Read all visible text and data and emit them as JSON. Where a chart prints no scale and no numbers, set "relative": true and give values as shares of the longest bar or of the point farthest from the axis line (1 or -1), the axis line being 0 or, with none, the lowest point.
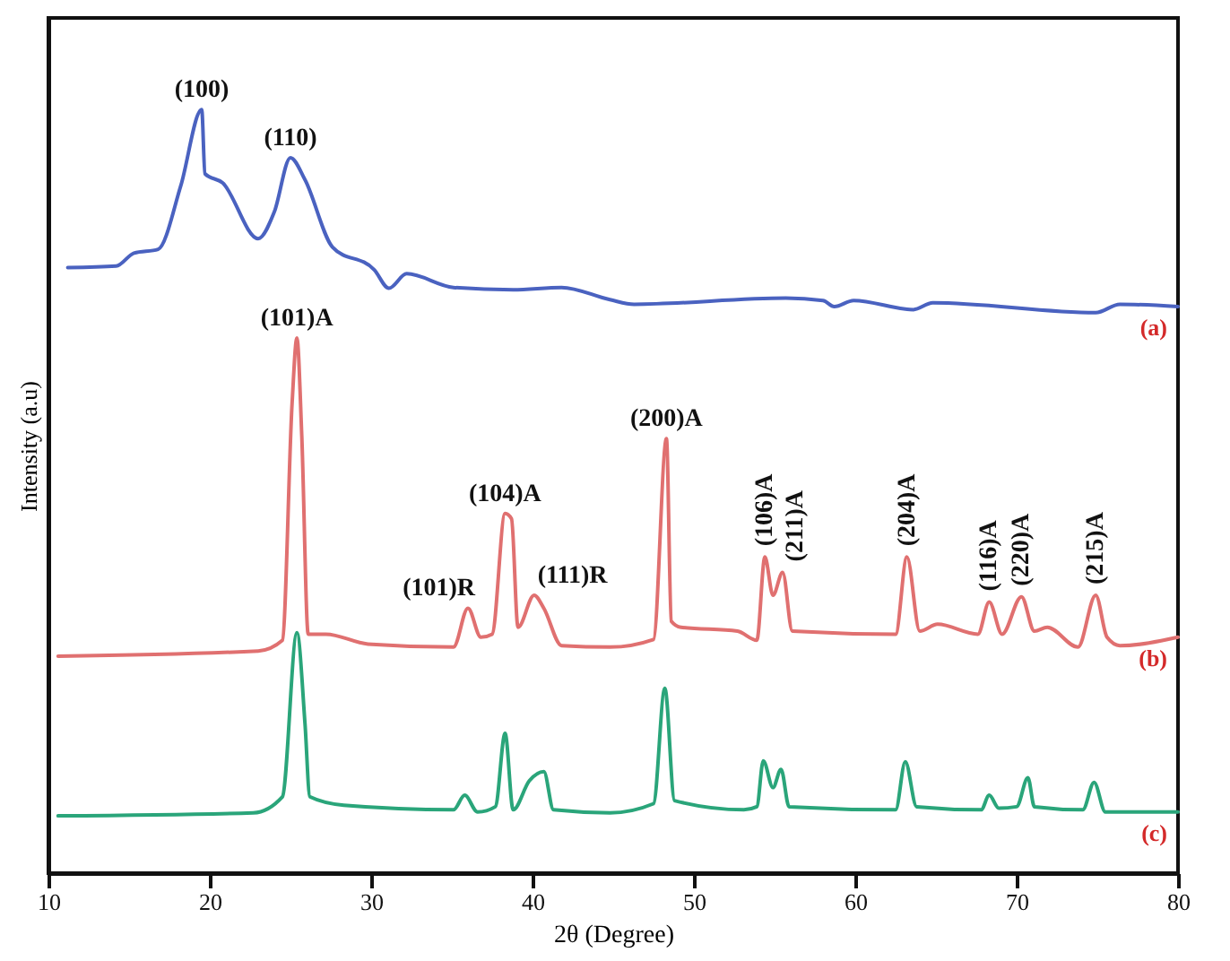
{
  "chart_data": {
    "type": "line",
    "xlabel": "2θ (Degree)",
    "ylabel": "Intensity (a.u)",
    "relative": true,
    "xlim": [
      10,
      80
    ],
    "xticks": [
      10,
      20,
      30,
      40,
      50,
      60,
      70,
      80
    ],
    "marker": "none",
    "line_style": "solid",
    "series": [
      {
        "name": "(a)",
        "color": "#4a62c0",
        "x": [
          11.2,
          14.2,
          15.3,
          16.8,
          18.2,
          19.5,
          19.7,
          20.8,
          23.0,
          24.0,
          25.0,
          25.9,
          27.6,
          30.2,
          31.1,
          32.2,
          35.1,
          38.8,
          41.8,
          44.8,
          46.3,
          55.7,
          58.0,
          58.7,
          59.9,
          63.6,
          64.8,
          74.9,
          76.4,
          80
        ],
        "values": [
          0.793,
          0.795,
          0.812,
          0.817,
          0.9,
          1,
          0.916,
          0.904,
          0.831,
          0.866,
          0.937,
          0.908,
          0.82,
          0.79,
          0.766,
          0.785,
          0.767,
          0.764,
          0.767,
          0.751,
          0.745,
          0.753,
          0.75,
          0.742,
          0.75,
          0.738,
          0.747,
          0.734,
          0.745,
          0.742
        ]
      },
      {
        "name": "(b)",
        "color": "#e07070",
        "x": [
          10.6,
          23.0,
          24.5,
          25.1,
          25.4,
          25.7,
          26.1,
          27.2,
          29.8,
          35.1,
          36.0,
          36.8,
          37.5,
          38.3,
          38.7,
          39.1,
          40.1,
          40.7,
          41.8,
          44.8,
          47.5,
          48.3,
          48.6,
          49.2,
          52.7,
          53.9,
          54.4,
          54.9,
          55.5,
          56.1,
          62.5,
          63.2,
          64.0,
          65.1,
          67.6,
          68.3,
          69.1,
          70.3,
          71.1,
          71.9,
          73.8,
          74.9,
          75.6,
          76.4,
          80
        ],
        "values": [
          0.284,
          0.291,
          0.305,
          0.615,
          0.701,
          0.573,
          0.313,
          0.313,
          0.3,
          0.296,
          0.347,
          0.309,
          0.313,
          0.471,
          0.464,
          0.322,
          0.364,
          0.347,
          0.298,
          0.296,
          0.306,
          0.569,
          0.33,
          0.322,
          0.317,
          0.305,
          0.414,
          0.364,
          0.394,
          0.317,
          0.313,
          0.414,
          0.317,
          0.326,
          0.313,
          0.355,
          0.313,
          0.362,
          0.317,
          0.322,
          0.296,
          0.364,
          0.309,
          0.298,
          0.309
        ]
      },
      {
        "name": "(c)",
        "color": "#2aa57a",
        "x": [
          10.6,
          22.7,
          24.5,
          25.4,
          25.9,
          26.2,
          28.3,
          35.1,
          35.8,
          36.6,
          37.7,
          38.3,
          38.8,
          39.8,
          40.7,
          41.3,
          44.8,
          47.5,
          48.2,
          48.8,
          53.1,
          53.9,
          54.3,
          54.9,
          55.4,
          55.9,
          62.5,
          63.1,
          63.8,
          67.8,
          68.3,
          68.9,
          70.0,
          70.7,
          71.1,
          74.1,
          74.8,
          75.5,
          80
        ],
        "values": [
          0.075,
          0.079,
          0.1,
          0.315,
          0.196,
          0.1,
          0.089,
          0.083,
          0.102,
          0.08,
          0.087,
          0.183,
          0.083,
          0.121,
          0.133,
          0.083,
          0.079,
          0.091,
          0.242,
          0.095,
          0.083,
          0.087,
          0.147,
          0.112,
          0.136,
          0.087,
          0.083,
          0.146,
          0.087,
          0.083,
          0.102,
          0.085,
          0.087,
          0.125,
          0.087,
          0.083,
          0.119,
          0.08,
          0.08
        ]
      }
    ],
    "annotations": [
      {
        "text": "(100)",
        "x": 19.5,
        "y": 1
      },
      {
        "text": "(110)",
        "x": 25.0,
        "y": 0.937
      },
      {
        "text": "(101)A",
        "x": 25.4,
        "y": 0.701
      },
      {
        "text": "(101)R",
        "x": 36.0,
        "y": 0.347
      },
      {
        "text": "(104)A",
        "x": 38.3,
        "y": 0.471
      },
      {
        "text": "(111)R",
        "x": 40.1,
        "y": 0.364
      },
      {
        "text": "(200)A",
        "x": 48.3,
        "y": 0.569
      },
      {
        "text": "(106)A",
        "x": 54.4,
        "y": 0.414
      },
      {
        "text": "(211)A",
        "x": 55.5,
        "y": 0.394
      },
      {
        "text": "(204)A",
        "x": 63.2,
        "y": 0.414
      },
      {
        "text": "(116)A",
        "x": 68.3,
        "y": 0.355
      },
      {
        "text": "(220)A",
        "x": 70.3,
        "y": 0.362
      },
      {
        "text": "(215)A",
        "x": 74.9,
        "y": 0.364
      }
    ]
  }
}
